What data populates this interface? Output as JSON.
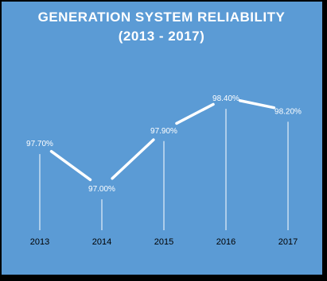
{
  "chart_data": {
    "type": "line",
    "title": "GENERATION SYSTEM RELIABILITY",
    "subtitle": "(2013 - 2017)",
    "categories": [
      "2013",
      "2014",
      "2015",
      "2016",
      "2017"
    ],
    "series": [
      {
        "values": [
          97.7,
          97.0,
          97.9,
          98.4,
          98.2
        ],
        "labels": [
          "97.70%",
          "97.00%",
          "97.90%",
          "98.40%",
          "98.20%"
        ]
      }
    ],
    "ylim": [
      96.35,
      99.15
    ],
    "grid": false,
    "legend": "none",
    "colors": {
      "background": "#5b9bd5",
      "frame": "#000000",
      "line": "#ffffff",
      "drop_lines": "#ffffff",
      "title": "#ffffff",
      "tick_labels": "#000000",
      "data_labels": "#ffffff",
      "highlight_label": "#c00000"
    },
    "highlight_index": 4
  }
}
